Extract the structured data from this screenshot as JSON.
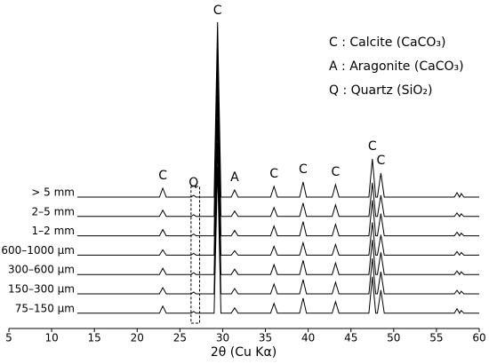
{
  "chart_data": {
    "type": "line",
    "x_label": "2θ (Cu Kα)",
    "xlim": [
      5,
      60
    ],
    "xticks": [
      5,
      10,
      15,
      20,
      25,
      30,
      35,
      40,
      45,
      50,
      55,
      60
    ],
    "x": [
      13,
      22.6,
      23.0,
      23.4,
      26.3,
      26.6,
      26.9,
      29.0,
      29.4,
      29.8,
      31.0,
      31.4,
      31.8,
      35.6,
      36.0,
      36.4,
      39.0,
      39.4,
      39.8,
      42.8,
      43.2,
      43.6,
      47.1,
      47.5,
      47.9,
      48.1,
      48.5,
      48.9,
      57.1,
      57.4,
      57.7,
      57.9,
      58.2,
      60
    ],
    "series": [
      {
        "name": "> 5 mm",
        "color": "#000000",
        "values": [
          0,
          0,
          10,
          0,
          0,
          2,
          0,
          0,
          197,
          0,
          0,
          8,
          0,
          0,
          12,
          0,
          0,
          17,
          0,
          0,
          14,
          0,
          0,
          43,
          0,
          0,
          27,
          0,
          0,
          5,
          0,
          4,
          0,
          0
        ]
      },
      {
        "name": "2–5 mm",
        "color": "#000000",
        "values": [
          0,
          0,
          7,
          0,
          0,
          2,
          0,
          0,
          190,
          0,
          0,
          6,
          0,
          0,
          10,
          0,
          0,
          15,
          0,
          0,
          13,
          0,
          0,
          38,
          0,
          0,
          24,
          0,
          0,
          4,
          0,
          3,
          0,
          0
        ]
      },
      {
        "name": "1–2 mm",
        "color": "#000000",
        "values": [
          0,
          0,
          7,
          0,
          0,
          2,
          0,
          0,
          185,
          0,
          0,
          6,
          0,
          0,
          11,
          0,
          0,
          16,
          0,
          0,
          13,
          0,
          0,
          40,
          0,
          0,
          25,
          0,
          0,
          4,
          0,
          3,
          0,
          0
        ]
      },
      {
        "name": "600–1000 µm",
        "color": "#000000",
        "values": [
          0,
          0,
          6,
          0,
          0,
          2,
          0,
          0,
          180,
          0,
          0,
          5,
          0,
          0,
          10,
          0,
          0,
          14,
          0,
          0,
          12,
          0,
          0,
          37,
          0,
          0,
          23,
          0,
          0,
          4,
          0,
          3,
          0,
          0
        ]
      },
      {
        "name": "300–600 µm",
        "color": "#000000",
        "values": [
          0,
          0,
          7,
          0,
          0,
          2,
          0,
          0,
          175,
          0,
          0,
          6,
          0,
          0,
          11,
          0,
          0,
          16,
          0,
          0,
          13,
          0,
          0,
          39,
          0,
          0,
          25,
          0,
          0,
          4,
          0,
          3,
          0,
          0
        ]
      },
      {
        "name": "150–300 µm",
        "color": "#000000",
        "values": [
          0,
          0,
          7,
          0,
          0,
          2,
          0,
          0,
          170,
          0,
          0,
          6,
          0,
          0,
          11,
          0,
          0,
          16,
          0,
          0,
          13,
          0,
          0,
          40,
          0,
          0,
          25,
          0,
          0,
          4,
          0,
          3,
          0,
          0
        ]
      },
      {
        "name": "75–150 µm",
        "color": "#000000",
        "values": [
          0,
          0,
          8,
          0,
          0,
          2,
          0,
          0,
          165,
          0,
          0,
          6,
          0,
          0,
          11,
          0,
          0,
          17,
          0,
          0,
          13,
          0,
          0,
          41,
          0,
          0,
          26,
          0,
          0,
          5,
          0,
          3,
          0,
          0
        ]
      }
    ],
    "annotations": [
      {
        "text": "C",
        "x": 23.0
      },
      {
        "text": "Q",
        "x": 26.6
      },
      {
        "text": "C",
        "x": 29.4
      },
      {
        "text": "A",
        "x": 31.4
      },
      {
        "text": "C",
        "x": 36.0
      },
      {
        "text": "C",
        "x": 39.4
      },
      {
        "text": "C",
        "x": 43.2
      },
      {
        "text": "C",
        "x": 47.5
      },
      {
        "text": "C",
        "x": 48.5
      }
    ],
    "legend_notes": [
      "C : Calcite (CaCO₃)",
      "A : Aragonite (CaCO₃)",
      "Q : Quartz (SiO₂)"
    ]
  }
}
